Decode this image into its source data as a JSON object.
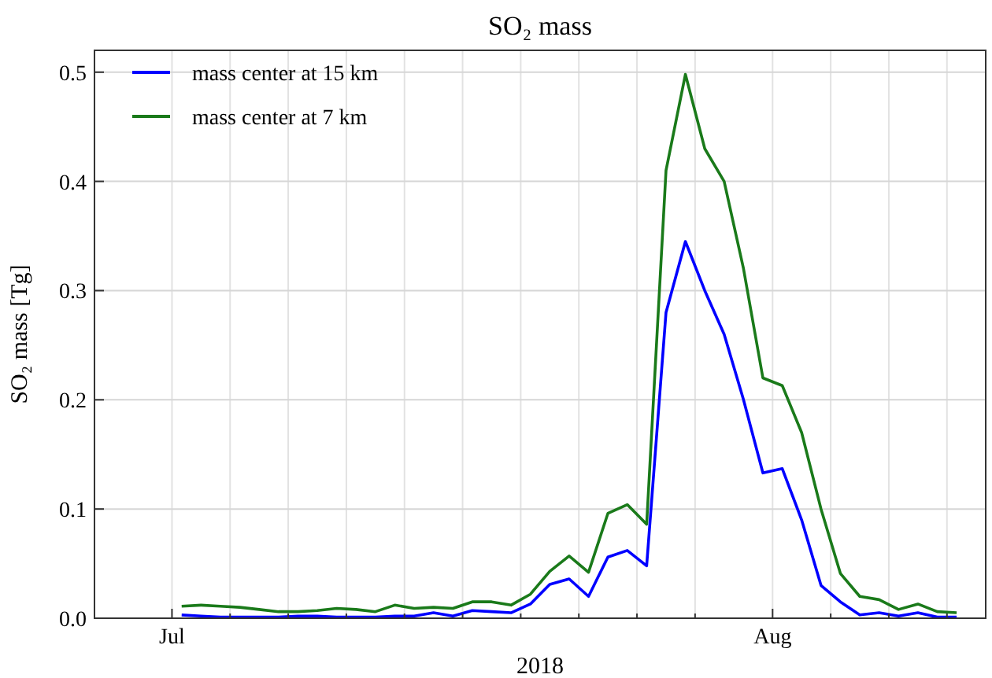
{
  "chart_data": {
    "type": "line",
    "title": "SO₂ mass",
    "xlabel": "2018",
    "ylabel": "SO₂ mass [Tg]",
    "x": [
      "2018-07-01T12:00",
      "2018-07-02T12:00",
      "2018-07-03T12:00",
      "2018-07-04T12:00",
      "2018-07-05T12:00",
      "2018-07-06T12:00",
      "2018-07-07T12:00",
      "2018-07-08T12:00",
      "2018-07-09T12:00",
      "2018-07-10T12:00",
      "2018-07-11T12:00",
      "2018-07-12T12:00",
      "2018-07-13T12:00",
      "2018-07-14T12:00",
      "2018-07-15T12:00",
      "2018-07-16T12:00",
      "2018-07-17T12:00",
      "2018-07-18T12:00",
      "2018-07-19T12:00",
      "2018-07-20T12:00",
      "2018-07-21T12:00",
      "2018-07-22T12:00",
      "2018-07-23T12:00",
      "2018-07-24T12:00",
      "2018-07-25T12:00",
      "2018-07-26T12:00",
      "2018-07-27T12:00",
      "2018-07-28T12:00",
      "2018-07-29T12:00",
      "2018-07-30T12:00",
      "2018-07-31T12:00",
      "2018-08-01T12:00",
      "2018-08-02T12:00",
      "2018-08-03T12:00",
      "2018-08-04T12:00",
      "2018-08-05T12:00",
      "2018-08-06T12:00",
      "2018-08-07T12:00",
      "2018-08-08T12:00",
      "2018-08-09T12:00",
      "2018-08-10T12:00"
    ],
    "series": [
      {
        "name": "mass center at 15 km",
        "color": "#0000ff",
        "values": [
          0.003,
          0.002,
          0.001,
          0.001,
          0.001,
          0.001,
          0.002,
          0.002,
          0.001,
          0.001,
          0.001,
          0.002,
          0.002,
          0.005,
          0.002,
          0.007,
          0.006,
          0.005,
          0.013,
          0.031,
          0.036,
          0.02,
          0.056,
          0.062,
          0.048,
          0.28,
          0.345,
          0.3,
          0.26,
          0.2,
          0.133,
          0.137,
          0.09,
          0.03,
          0.015,
          0.003,
          0.005,
          0.002,
          0.005,
          0.001,
          0.001
        ]
      },
      {
        "name": "mass center at 7 km",
        "color": "#1a7a1a",
        "values": [
          0.011,
          0.012,
          0.011,
          0.01,
          0.008,
          0.006,
          0.006,
          0.007,
          0.009,
          0.008,
          0.006,
          0.012,
          0.009,
          0.01,
          0.009,
          0.015,
          0.015,
          0.012,
          0.022,
          0.043,
          0.057,
          0.042,
          0.096,
          0.104,
          0.086,
          0.41,
          0.498,
          0.43,
          0.4,
          0.32,
          0.22,
          0.213,
          0.17,
          0.1,
          0.041,
          0.02,
          0.017,
          0.008,
          0.013,
          0.006,
          0.005
        ]
      }
    ],
    "xlim": [
      "2018-06-27",
      "2018-08-12"
    ],
    "xticks": [
      {
        "value": "2018-07-01",
        "label": "Jul"
      },
      {
        "value": "2018-07-04",
        "label": null
      },
      {
        "value": "2018-07-07",
        "label": null
      },
      {
        "value": "2018-07-10",
        "label": null
      },
      {
        "value": "2018-07-13",
        "label": null
      },
      {
        "value": "2018-07-16",
        "label": null
      },
      {
        "value": "2018-07-19",
        "label": null
      },
      {
        "value": "2018-07-22",
        "label": null
      },
      {
        "value": "2018-07-25",
        "label": null
      },
      {
        "value": "2018-07-28",
        "label": null
      },
      {
        "value": "2018-08-01",
        "label": "Aug"
      },
      {
        "value": "2018-08-04",
        "label": null
      },
      {
        "value": "2018-08-07",
        "label": null
      },
      {
        "value": "2018-08-10",
        "label": null
      }
    ],
    "ylim": [
      0,
      0.52
    ],
    "yticks": [
      {
        "value": 0,
        "label": "0.0"
      },
      0.1,
      0.2,
      0.3,
      0.4,
      0.5
    ],
    "grid": true,
    "legend": "top left",
    "marker": "none",
    "line_style": "solid"
  }
}
